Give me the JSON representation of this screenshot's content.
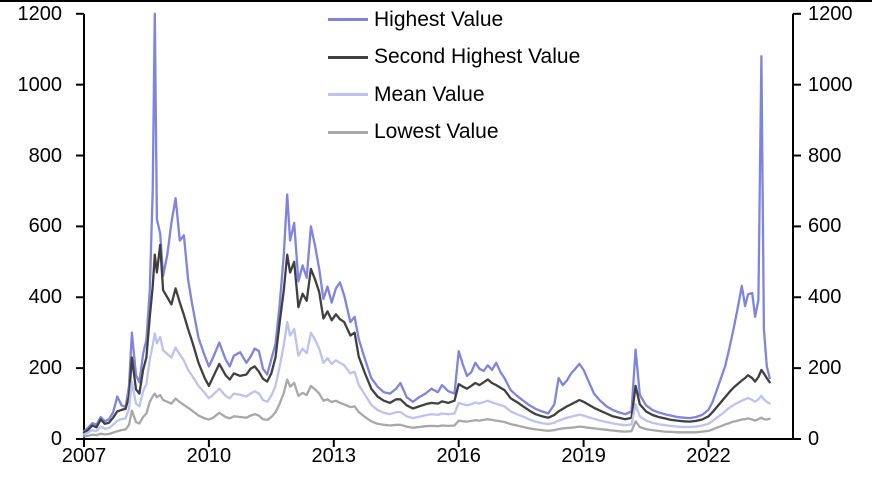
{
  "chart_data": {
    "type": "line",
    "title": "",
    "xlabel": "",
    "ylabel": "",
    "ylim": [
      0,
      1200
    ],
    "xlim": [
      2007,
      2024.03
    ],
    "grid": false,
    "legend_position": "top-center",
    "axis_color": "#000000",
    "y_ticks": [
      0,
      200,
      400,
      600,
      800,
      1000,
      1200
    ],
    "x_ticks": [
      2007,
      2010,
      2013,
      2016,
      2019,
      2022
    ],
    "x": [
      2007.0,
      2007.1,
      2007.2,
      2007.3,
      2007.4,
      2007.5,
      2007.6,
      2007.7,
      2007.8,
      2007.9,
      2008.0,
      2008.08,
      2008.15,
      2008.25,
      2008.33,
      2008.42,
      2008.5,
      2008.58,
      2008.65,
      2008.7,
      2008.75,
      2008.83,
      2008.9,
      2009.0,
      2009.1,
      2009.2,
      2009.3,
      2009.4,
      2009.5,
      2009.6,
      2009.75,
      2009.9,
      2010.0,
      2010.1,
      2010.25,
      2010.4,
      2010.5,
      2010.6,
      2010.75,
      2010.9,
      2011.0,
      2011.1,
      2011.2,
      2011.3,
      2011.4,
      2011.5,
      2011.6,
      2011.7,
      2011.8,
      2011.88,
      2011.95,
      2012.05,
      2012.15,
      2012.25,
      2012.35,
      2012.45,
      2012.55,
      2012.65,
      2012.75,
      2012.85,
      2012.95,
      2013.05,
      2013.15,
      2013.25,
      2013.4,
      2013.5,
      2013.6,
      2013.75,
      2013.9,
      2014.05,
      2014.2,
      2014.35,
      2014.5,
      2014.6,
      2014.75,
      2014.9,
      2015.05,
      2015.2,
      2015.35,
      2015.5,
      2015.6,
      2015.75,
      2015.9,
      2016.0,
      2016.1,
      2016.2,
      2016.3,
      2016.4,
      2016.5,
      2016.6,
      2016.7,
      2016.8,
      2016.9,
      2017.0,
      2017.1,
      2017.25,
      2017.4,
      2017.55,
      2017.7,
      2017.85,
      2018.0,
      2018.15,
      2018.3,
      2018.4,
      2018.5,
      2018.6,
      2018.7,
      2018.8,
      2018.9,
      2019.0,
      2019.1,
      2019.25,
      2019.4,
      2019.55,
      2019.7,
      2019.85,
      2020.0,
      2020.15,
      2020.25,
      2020.35,
      2020.5,
      2020.65,
      2020.8,
      2020.95,
      2021.1,
      2021.25,
      2021.4,
      2021.55,
      2021.7,
      2021.85,
      2022.0,
      2022.1,
      2022.2,
      2022.3,
      2022.4,
      2022.5,
      2022.6,
      2022.7,
      2022.8,
      2022.88,
      2022.95,
      2023.05,
      2023.12,
      2023.2,
      2023.27,
      2023.33,
      2023.4,
      2023.47
    ],
    "series": [
      {
        "name": "Highest Value",
        "color": "#7f84e0",
        "values": [
          22,
          32,
          45,
          40,
          62,
          50,
          56,
          75,
          120,
          95,
          90,
          150,
          300,
          180,
          160,
          240,
          280,
          420,
          700,
          1200,
          620,
          580,
          460,
          520,
          610,
          680,
          560,
          575,
          450,
          380,
          285,
          235,
          205,
          230,
          272,
          225,
          205,
          235,
          245,
          215,
          232,
          255,
          248,
          198,
          182,
          225,
          268,
          380,
          520,
          690,
          560,
          610,
          445,
          490,
          455,
          600,
          545,
          480,
          395,
          430,
          385,
          425,
          442,
          405,
          330,
          345,
          282,
          225,
          172,
          148,
          132,
          128,
          142,
          158,
          118,
          105,
          118,
          128,
          142,
          132,
          152,
          135,
          128,
          248,
          210,
          178,
          188,
          215,
          198,
          192,
          208,
          195,
          215,
          190,
          172,
          138,
          122,
          108,
          95,
          85,
          78,
          72,
          98,
          172,
          152,
          165,
          185,
          198,
          212,
          195,
          168,
          128,
          108,
          92,
          82,
          75,
          70,
          78,
          252,
          125,
          95,
          82,
          75,
          70,
          66,
          62,
          60,
          59,
          62,
          68,
          82,
          105,
          138,
          172,
          205,
          255,
          310,
          368,
          432,
          375,
          408,
          412,
          345,
          392,
          1080,
          310,
          205,
          172
        ]
      },
      {
        "name": "Second Highest Value",
        "color": "#404040",
        "values": [
          18,
          26,
          38,
          33,
          55,
          43,
          46,
          60,
          78,
          82,
          85,
          120,
          230,
          140,
          128,
          195,
          230,
          345,
          430,
          520,
          470,
          548,
          420,
          400,
          380,
          425,
          385,
          350,
          310,
          275,
          215,
          172,
          150,
          175,
          212,
          180,
          168,
          185,
          178,
          182,
          198,
          205,
          190,
          170,
          162,
          185,
          230,
          330,
          420,
          520,
          470,
          500,
          372,
          410,
          390,
          480,
          450,
          415,
          340,
          360,
          335,
          352,
          338,
          330,
          292,
          300,
          232,
          185,
          142,
          120,
          108,
          102,
          112,
          112,
          95,
          86,
          92,
          98,
          102,
          100,
          106,
          102,
          108,
          155,
          148,
          142,
          150,
          158,
          152,
          160,
          168,
          158,
          152,
          145,
          138,
          115,
          104,
          92,
          80,
          70,
          64,
          60,
          68,
          78,
          85,
          92,
          98,
          104,
          110,
          105,
          98,
          88,
          80,
          72,
          64,
          60,
          56,
          60,
          150,
          98,
          78,
          68,
          62,
          58,
          54,
          52,
          50,
          49,
          51,
          55,
          64,
          76,
          90,
          104,
          118,
          132,
          145,
          155,
          165,
          172,
          180,
          172,
          162,
          175,
          195,
          185,
          172,
          160
        ]
      },
      {
        "name": "Mean Value",
        "color": "#bdc2ef",
        "values": [
          13,
          18,
          25,
          22,
          35,
          29,
          31,
          40,
          52,
          56,
          58,
          85,
          160,
          100,
          92,
          135,
          155,
          225,
          265,
          298,
          270,
          288,
          250,
          240,
          230,
          258,
          238,
          222,
          195,
          178,
          150,
          130,
          115,
          125,
          142,
          122,
          115,
          128,
          125,
          120,
          128,
          135,
          128,
          110,
          105,
          122,
          150,
          205,
          265,
          330,
          292,
          310,
          235,
          255,
          242,
          300,
          280,
          255,
          215,
          228,
          212,
          222,
          215,
          208,
          185,
          190,
          152,
          125,
          96,
          82,
          74,
          70,
          76,
          76,
          64,
          59,
          63,
          67,
          70,
          68,
          72,
          70,
          72,
          102,
          98,
          95,
          98,
          103,
          100,
          104,
          108,
          103,
          100,
          96,
          92,
          78,
          70,
          63,
          55,
          49,
          45,
          42,
          46,
          52,
          56,
          60,
          63,
          66,
          69,
          66,
          62,
          57,
          52,
          48,
          44,
          41,
          39,
          41,
          98,
          64,
          52,
          46,
          42,
          39,
          37,
          35,
          34,
          34,
          35,
          38,
          43,
          51,
          60,
          69,
          78,
          88,
          96,
          102,
          108,
          112,
          116,
          110,
          105,
          112,
          122,
          112,
          105,
          100
        ]
      },
      {
        "name": "Lowest Value",
        "color": "#a8a8a8",
        "values": [
          7,
          9,
          12,
          11,
          15,
          13,
          14,
          18,
          22,
          25,
          27,
          40,
          80,
          48,
          44,
          62,
          72,
          105,
          120,
          128,
          118,
          124,
          110,
          105,
          100,
          114,
          104,
          96,
          88,
          80,
          66,
          58,
          55,
          60,
          74,
          62,
          58,
          64,
          62,
          60,
          66,
          70,
          66,
          56,
          54,
          62,
          75,
          100,
          130,
          168,
          148,
          158,
          122,
          130,
          124,
          150,
          140,
          128,
          108,
          112,
          104,
          108,
          102,
          98,
          90,
          92,
          76,
          62,
          50,
          43,
          40,
          38,
          40,
          40,
          35,
          32,
          34,
          36,
          37,
          36,
          38,
          37,
          38,
          52,
          50,
          49,
          51,
          53,
          52,
          54,
          56,
          54,
          52,
          50,
          48,
          42,
          38,
          34,
          30,
          27,
          25,
          23,
          25,
          28,
          30,
          31,
          32,
          33,
          35,
          34,
          32,
          30,
          28,
          26,
          24,
          22,
          21,
          22,
          50,
          34,
          28,
          25,
          23,
          21,
          20,
          19,
          19,
          19,
          19,
          21,
          23,
          27,
          32,
          36,
          41,
          45,
          49,
          52,
          55,
          56,
          58,
          55,
          52,
          56,
          60,
          56,
          55,
          57
        ]
      }
    ]
  }
}
